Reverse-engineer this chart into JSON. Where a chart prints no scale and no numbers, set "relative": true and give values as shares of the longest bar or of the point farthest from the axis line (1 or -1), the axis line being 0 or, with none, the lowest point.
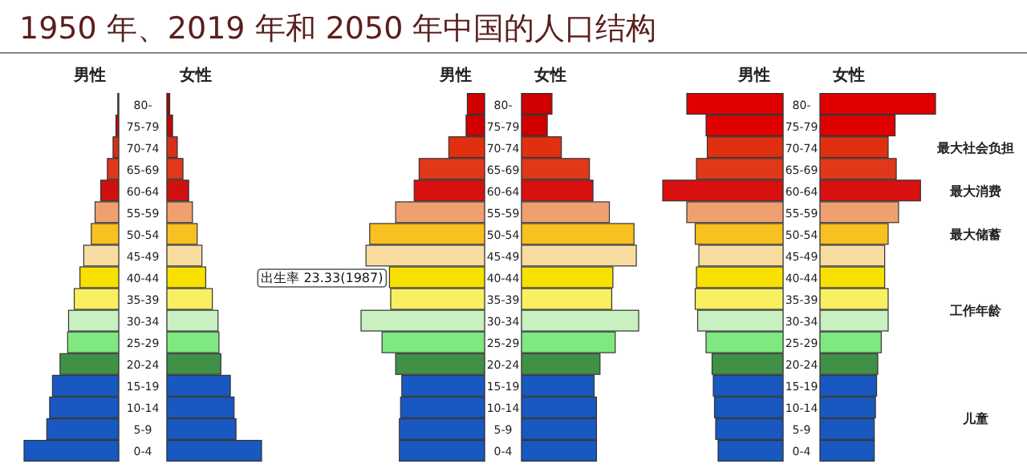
{
  "chart_data": [
    {
      "type": "bar",
      "orientation": "horizontal",
      "relative": true,
      "title": "1950 年、2019 年和 2050 年中国的人口结构",
      "categories": [
        "80-",
        "75-79",
        "70-74",
        "65-69",
        "60-64",
        "55-59",
        "50-54",
        "45-49",
        "40-44",
        "35-39",
        "30-34",
        "25-29",
        "20-24",
        "15-19",
        "10-14",
        "5-9",
        "0-4"
      ],
      "series": [
        {
          "name": "男性",
          "values": [
            -0.01,
            -0.03,
            -0.06,
            -0.12,
            -0.19,
            -0.25,
            -0.29,
            -0.37,
            -0.41,
            -0.47,
            -0.53,
            -0.54,
            -0.62,
            -0.7,
            -0.73,
            -0.76,
            -1
          ],
          "colors": [
            "#b00000",
            "#c00808",
            "#d83018",
            "#e03818",
            "#d01010",
            "#f0a070",
            "#f8c020",
            "#f8dca0",
            "#f8e000",
            "#f8f060",
            "#c8f0c0",
            "#80e880",
            "#409048",
            "#1858c0",
            "#1858c0",
            "#1858c0",
            "#1858c0"
          ]
        }
      ]
    },
    {
      "type": "bar",
      "orientation": "horizontal",
      "relative": true,
      "categories": [
        null,
        null,
        null,
        null,
        null,
        null,
        null,
        null,
        null,
        null,
        null,
        null,
        null,
        null,
        null,
        null,
        null
      ],
      "series": [
        {
          "name": "女性",
          "values": [
            0.03,
            0.06,
            0.11,
            0.17,
            0.23,
            0.27,
            0.32,
            0.37,
            0.41,
            0.48,
            0.54,
            0.55,
            0.57,
            0.67,
            0.71,
            0.73,
            1
          ],
          "colors": [
            "#b00000",
            "#c00808",
            "#d83018",
            "#e03818",
            "#d01010",
            "#f0a070",
            "#f8c020",
            "#f8dca0",
            "#f8e000",
            "#f8f060",
            "#c8f0c0",
            "#80e880",
            "#409048",
            "#1858c0",
            "#1858c0",
            "#1858c0",
            "#1858c0"
          ]
        }
      ]
    },
    {
      "type": "bar",
      "orientation": "horizontal",
      "relative": true,
      "categories": [
        "80-",
        "75-79",
        "70-74",
        "65-69",
        "60-64",
        "55-59",
        "50-54",
        "45-49",
        "40-44",
        "35-39",
        "30-34",
        "25-29",
        "20-24",
        "15-19",
        "10-14",
        "5-9",
        "0-4"
      ],
      "series": [
        {
          "name": "男性",
          "values": [
            -0.14,
            -0.15,
            -0.29,
            -0.53,
            -0.57,
            -0.72,
            -0.93,
            -0.96,
            -0.77,
            -0.76,
            -1,
            -0.83,
            -0.72,
            -0.67,
            -0.68,
            -0.69,
            -0.69
          ],
          "colors": [
            "#d00000",
            "#d00000",
            "#e03010",
            "#e03818",
            "#d81010",
            "#f0a070",
            "#f8c020",
            "#f8dca0",
            "#f8e000",
            "#f8f060",
            "#c8f0c0",
            "#80e880",
            "#409048",
            "#1858c0",
            "#1858c0",
            "#1858c0",
            "#1858c0"
          ]
        }
      ],
      "annotations": [
        "出生率 23.33(1987)"
      ]
    },
    {
      "type": "bar",
      "orientation": "horizontal",
      "relative": true,
      "categories": [
        null,
        null,
        null,
        null,
        null,
        null,
        null,
        null,
        null,
        null,
        null,
        null,
        null,
        null,
        null,
        null,
        null
      ],
      "series": [
        {
          "name": "女性",
          "values": [
            0.26,
            0.22,
            0.34,
            0.58,
            0.61,
            0.75,
            0.96,
            0.98,
            0.78,
            0.77,
            1,
            0.8,
            0.67,
            0.62,
            0.64,
            0.64,
            0.64
          ],
          "colors": [
            "#d00000",
            "#d00000",
            "#e03010",
            "#e03818",
            "#d81010",
            "#f0a070",
            "#f8c020",
            "#f8dca0",
            "#f8e000",
            "#f8f060",
            "#c8f0c0",
            "#80e880",
            "#409048",
            "#1858c0",
            "#1858c0",
            "#1858c0",
            "#1858c0"
          ]
        }
      ]
    },
    {
      "type": "bar",
      "orientation": "horizontal",
      "relative": true,
      "categories": [
        "80-",
        "75-79",
        "70-74",
        "65-69",
        "60-64",
        "55-59",
        "50-54",
        "45-49",
        "40-44",
        "35-39",
        "30-34",
        "25-29",
        "20-24",
        "15-19",
        "10-14",
        "5-9",
        "0-4"
      ],
      "series": [
        {
          "name": "男性",
          "values": [
            -0.8,
            -0.64,
            -0.63,
            -0.72,
            -1,
            -0.8,
            -0.73,
            -0.7,
            -0.72,
            -0.73,
            -0.71,
            -0.64,
            -0.59,
            -0.58,
            -0.57,
            -0.56,
            -0.54
          ],
          "colors": [
            "#e00000",
            "#e00000",
            "#e03010",
            "#e03818",
            "#d81010",
            "#f0a070",
            "#f8c020",
            "#f8dca0",
            "#f8e000",
            "#f8f060",
            "#c8f0c0",
            "#80e880",
            "#409048",
            "#1858c0",
            "#1858c0",
            "#1858c0",
            "#1858c0"
          ]
        }
      ]
    },
    {
      "type": "bar",
      "orientation": "horizontal",
      "relative": true,
      "categories": [
        null,
        null,
        null,
        null,
        null,
        null,
        null,
        null,
        null,
        null,
        null,
        null,
        null,
        null,
        null,
        null,
        null
      ],
      "series": [
        {
          "name": "女性",
          "values": [
            1,
            0.65,
            0.59,
            0.66,
            0.87,
            0.68,
            0.59,
            0.56,
            0.56,
            0.59,
            0.59,
            0.53,
            0.5,
            0.49,
            0.48,
            0.47,
            0.47
          ],
          "colors": [
            "#e00000",
            "#e00000",
            "#e03010",
            "#e03818",
            "#d81010",
            "#f0a070",
            "#f8c020",
            "#f8dca0",
            "#f8e000",
            "#f8f060",
            "#c8f0c0",
            "#80e880",
            "#409048",
            "#1858c0",
            "#1858c0",
            "#1858c0",
            "#1858c0"
          ]
        }
      ],
      "annotations": [
        "最大社会负担",
        "最大消费",
        "最大储蓄",
        "工作年龄",
        "儿童"
      ]
    }
  ]
}
